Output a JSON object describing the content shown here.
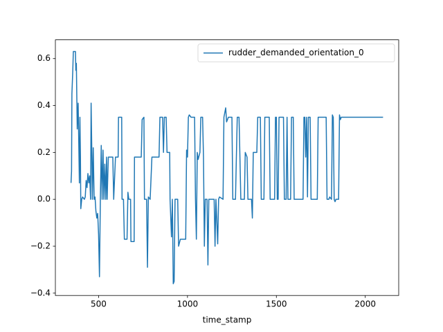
{
  "chart_data": {
    "type": "line",
    "x_label": "time_stamp",
    "x": [
      345,
      348,
      350,
      355,
      358,
      370,
      372,
      375,
      380,
      385,
      388,
      392,
      395,
      398,
      400,
      405,
      410,
      420,
      425,
      430,
      435,
      440,
      445,
      450,
      455,
      458,
      462,
      465,
      470,
      475,
      480,
      485,
      490,
      495,
      500,
      505,
      510,
      515,
      520,
      525,
      530,
      535,
      540,
      545,
      548,
      555,
      580,
      585,
      595,
      610,
      612,
      630,
      632,
      640,
      645,
      660,
      665,
      670,
      680,
      682,
      700,
      702,
      740,
      745,
      755,
      758,
      770,
      775,
      780,
      790,
      800,
      840,
      845,
      860,
      865,
      870,
      880,
      885,
      900,
      902,
      910,
      915,
      920,
      925,
      930,
      945,
      950,
      960,
      990,
      995,
      1000,
      1005,
      1010,
      1020,
      1040,
      1045,
      1050,
      1055,
      1060,
      1070,
      1075,
      1085,
      1090,
      1095,
      1100,
      1110,
      1115,
      1120,
      1150,
      1155,
      1160,
      1170,
      1175,
      1180,
      1200,
      1205,
      1215,
      1220,
      1230,
      1250,
      1255,
      1270,
      1275,
      1280,
      1290,
      1295,
      1300,
      1320,
      1325,
      1335,
      1340,
      1360,
      1365,
      1370,
      1390,
      1395,
      1410,
      1415,
      1430,
      1435,
      1460,
      1465,
      1490,
      1495,
      1500,
      1505,
      1510,
      1515,
      1540,
      1545,
      1555,
      1560,
      1565,
      1580,
      1585,
      1595,
      1600,
      1650,
      1655,
      1660,
      1665,
      1670,
      1675,
      1680,
      1690,
      1695,
      1730,
      1735,
      1780,
      1785,
      1795,
      1800,
      1810,
      1815,
      1820,
      1825,
      1830,
      1835,
      1850,
      1855,
      1860,
      1865,
      2100
    ],
    "series": [
      {
        "name": "rudder_demanded_orientation_0",
        "color": "#1f77b4",
        "values": [
          0.07,
          0.12,
          0.45,
          0.55,
          0.63,
          0.63,
          0.55,
          0.58,
          0.3,
          0.41,
          0.27,
          0.07,
          0.35,
          0.18,
          -0.04,
          0.0,
          0.01,
          0.0,
          0.01,
          0.08,
          0.05,
          0.11,
          0.07,
          0.1,
          0.0,
          0.41,
          0.2,
          0.0,
          0.22,
          0.0,
          0.01,
          -0.05,
          -0.08,
          -0.06,
          -0.15,
          -0.33,
          0.0,
          0.23,
          0.0,
          0.21,
          0.0,
          0.15,
          0.0,
          0.18,
          0.0,
          0.18,
          0.18,
          0.0,
          0.18,
          0.18,
          0.35,
          0.35,
          0.0,
          0.0,
          -0.17,
          -0.17,
          0.03,
          0.0,
          0.0,
          -0.18,
          -0.18,
          0.18,
          0.18,
          0.34,
          0.35,
          0.0,
          0.0,
          -0.29,
          0.01,
          0.0,
          0.18,
          0.18,
          0.35,
          0.35,
          0.2,
          0.35,
          0.35,
          0.2,
          0.2,
          0.0,
          -0.16,
          0.0,
          -0.36,
          -0.35,
          0.0,
          0.0,
          -0.2,
          -0.17,
          -0.17,
          0.21,
          0.18,
          0.35,
          0.36,
          0.35,
          0.35,
          0.0,
          -0.17,
          0.2,
          0.17,
          0.2,
          0.35,
          0.35,
          0.18,
          -0.2,
          0.0,
          0.0,
          -0.28,
          0.0,
          0.0,
          -0.2,
          0.0,
          -0.19,
          0.0,
          0.01,
          0.0,
          0.35,
          0.39,
          0.33,
          0.35,
          0.35,
          0.0,
          0.0,
          0.18,
          0.35,
          0.35,
          0.18,
          0.0,
          0.0,
          0.2,
          0.18,
          0.0,
          0.0,
          -0.08,
          0.2,
          0.2,
          0.35,
          0.35,
          0.0,
          0.0,
          0.35,
          0.35,
          0.0,
          0.0,
          0.35,
          0.35,
          0.0,
          0.0,
          0.35,
          0.35,
          0.0,
          0.0,
          0.35,
          0.0,
          0.0,
          0.35,
          0.35,
          0.0,
          0.0,
          0.35,
          0.35,
          0.18,
          0.35,
          0.01,
          0.35,
          0.35,
          0.0,
          0.0,
          0.35,
          0.35,
          0.0,
          0.0,
          0.01,
          0.0,
          0.36,
          0.35,
          0.0,
          -0.01,
          0.0,
          0.0,
          0.36,
          0.34,
          0.35,
          0.35
        ]
      }
    ],
    "xlim": [
      257,
      2188
    ],
    "xticks": [
      500,
      1000,
      1500,
      2000
    ],
    "ylim": [
      -0.41,
      0.68
    ],
    "yticks": [
      {
        "value": -0.4,
        "label": "−0.4"
      },
      {
        "value": -0.2,
        "label": "−0.2"
      },
      {
        "value": 0.0,
        "label": "0.0"
      },
      0.2,
      0.4,
      0.6
    ],
    "legend": "upper right",
    "grid": false
  }
}
